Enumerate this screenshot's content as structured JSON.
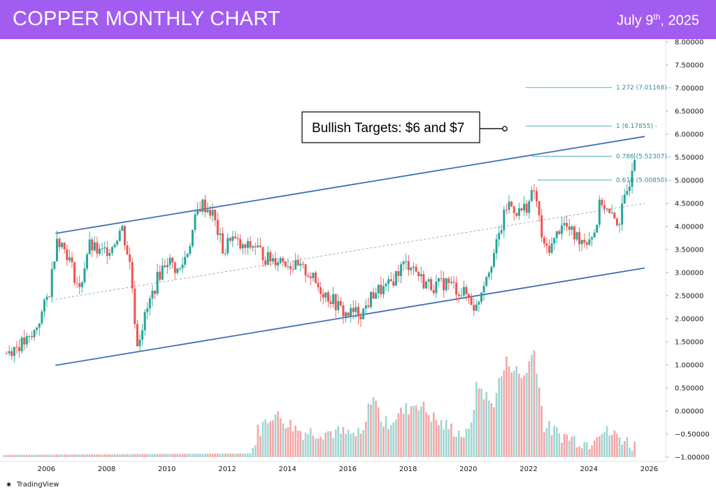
{
  "header": {
    "title": "COPPER MONTHLY CHART",
    "date_main": "July 9",
    "date_sup": "th",
    "date_year": ", 2025"
  },
  "brand": "TradingView",
  "colors": {
    "header_bg": "#a35cf0",
    "up": "#26a69a",
    "down": "#ef5350",
    "channel": "#3f6fb5",
    "fib": "#4fb3bb",
    "vol_up": "#9fd6d2",
    "vol_down": "#f4a6a6"
  },
  "chart_data": {
    "type": "candlestick",
    "title": "COPPER MONTHLY CHART",
    "x_ticks": [
      "2006",
      "2008",
      "2010",
      "2012",
      "2014",
      "2016",
      "2018",
      "2020",
      "2022",
      "2024",
      "2026"
    ],
    "x_range": [
      2004.6,
      2026.5
    ],
    "y_range": [
      -1.0,
      8.0
    ],
    "y_ticks": [
      "8.00000",
      "7.50000",
      "7.00000",
      "6.50000",
      "6.00000",
      "5.50000",
      "5.00000",
      "4.50000",
      "4.00000",
      "3.50000",
      "3.00000",
      "2.50000",
      "2.00000",
      "1.50000",
      "1.00000",
      "0.50000",
      "0.00000",
      "−0.50000",
      "−1.00000"
    ],
    "y_tick_values": [
      8,
      7.5,
      7,
      6.5,
      6,
      5.5,
      5,
      4.5,
      4,
      3.5,
      3,
      2.5,
      2,
      1.5,
      1,
      0.5,
      0,
      -0.5,
      -1
    ],
    "anchor_points": [
      [
        2004.6,
        1.25
      ],
      [
        2005.0,
        1.4
      ],
      [
        2005.5,
        1.55
      ],
      [
        2005.9,
        2.2
      ],
      [
        2006.1,
        2.6
      ],
      [
        2006.35,
        3.8
      ],
      [
        2006.7,
        3.4
      ],
      [
        2007.1,
        2.6
      ],
      [
        2007.4,
        3.6
      ],
      [
        2007.8,
        3.4
      ],
      [
        2008.2,
        3.6
      ],
      [
        2008.5,
        4.0
      ],
      [
        2008.8,
        3.1
      ],
      [
        2009.0,
        1.45
      ],
      [
        2009.3,
        2.1
      ],
      [
        2009.7,
        2.9
      ],
      [
        2010.0,
        3.3
      ],
      [
        2010.4,
        3.0
      ],
      [
        2010.7,
        3.5
      ],
      [
        2011.0,
        4.3
      ],
      [
        2011.15,
        4.5
      ],
      [
        2011.5,
        4.3
      ],
      [
        2011.9,
        3.4
      ],
      [
        2012.1,
        3.8
      ],
      [
        2012.5,
        3.5
      ],
      [
        2012.9,
        3.6
      ],
      [
        2013.3,
        3.3
      ],
      [
        2013.8,
        3.3
      ],
      [
        2014.3,
        3.1
      ],
      [
        2014.7,
        3.0
      ],
      [
        2015.0,
        2.7
      ],
      [
        2015.5,
        2.4
      ],
      [
        2015.9,
        2.1
      ],
      [
        2016.5,
        2.15
      ],
      [
        2016.9,
        2.6
      ],
      [
        2017.3,
        2.65
      ],
      [
        2017.8,
        3.15
      ],
      [
        2018.1,
        3.2
      ],
      [
        2018.5,
        2.8
      ],
      [
        2018.9,
        2.7
      ],
      [
        2019.3,
        2.8
      ],
      [
        2019.7,
        2.6
      ],
      [
        2020.0,
        2.5
      ],
      [
        2020.25,
        2.2
      ],
      [
        2020.5,
        2.8
      ],
      [
        2020.9,
        3.5
      ],
      [
        2021.3,
        4.5
      ],
      [
        2021.7,
        4.3
      ],
      [
        2022.0,
        4.5
      ],
      [
        2022.2,
        4.8
      ],
      [
        2022.5,
        3.5
      ],
      [
        2022.8,
        3.6
      ],
      [
        2023.1,
        4.1
      ],
      [
        2023.5,
        3.8
      ],
      [
        2023.9,
        3.7
      ],
      [
        2024.2,
        3.9
      ],
      [
        2024.4,
        4.6
      ],
      [
        2024.7,
        4.2
      ],
      [
        2025.0,
        4.1
      ],
      [
        2025.2,
        4.6
      ],
      [
        2025.35,
        5.0
      ],
      [
        2025.5,
        5.6
      ]
    ],
    "channel_lines": {
      "upper": {
        "from": [
          2006.3,
          3.85
        ],
        "to": [
          2025.85,
          5.95
        ]
      },
      "mid": {
        "from": [
          2006.3,
          2.42
        ],
        "to": [
          2025.85,
          4.5
        ]
      },
      "lower": {
        "from": [
          2006.3,
          0.99
        ],
        "to": [
          2025.85,
          3.1
        ]
      }
    },
    "fib_levels": [
      {
        "label": "1.272 (7.01168)",
        "value": 7.01168,
        "x_start": 2021.9
      },
      {
        "label": "1 (6.17855)",
        "value": 6.17855,
        "x_start": 2021.9
      },
      {
        "label": "0.786 (5.52307)",
        "value": 5.52307,
        "x_start": 2022.1
      },
      {
        "label": "0.618 (5.00850)",
        "value": 5.0085,
        "x_start": 2022.3
      }
    ],
    "annotation": {
      "text": "Bullish Targets: $6 and $7",
      "x": 2016.5,
      "y": 6.15
    },
    "volume_anchor_points": [
      [
        2004.6,
        -0.95
      ],
      [
        2012.8,
        -0.92
      ],
      [
        2013.0,
        -0.45
      ],
      [
        2013.5,
        -0.05
      ],
      [
        2014.5,
        -0.45
      ],
      [
        2015.5,
        -0.45
      ],
      [
        2016.5,
        -0.55
      ],
      [
        2016.8,
        0.4
      ],
      [
        2017.2,
        -0.3
      ],
      [
        2018.3,
        0.2
      ],
      [
        2019.0,
        -0.25
      ],
      [
        2020.0,
        -0.55
      ],
      [
        2020.3,
        0.6
      ],
      [
        2020.8,
        0.1
      ],
      [
        2021.0,
        0.6
      ],
      [
        2021.3,
        1.1
      ],
      [
        2021.8,
        0.7
      ],
      [
        2022.2,
        1.35
      ],
      [
        2022.5,
        -0.3
      ],
      [
        2023.0,
        -0.5
      ],
      [
        2024.0,
        -0.7
      ],
      [
        2024.3,
        -0.4
      ],
      [
        2025.0,
        -0.55
      ],
      [
        2025.5,
        -0.75
      ]
    ]
  }
}
